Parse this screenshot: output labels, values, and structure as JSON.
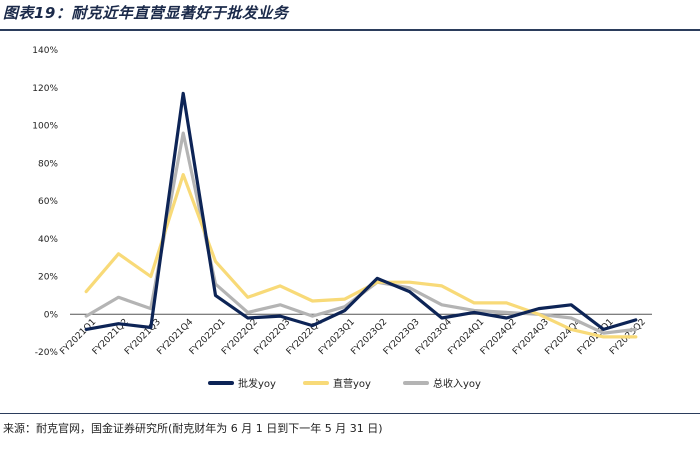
{
  "title": "图表19：耐克近年直营显著好于批发业务",
  "source": "来源：耐克官网，国金证券研究所(耐克财年为 6 月 1 日到下一年 5 月 31 日)",
  "colors": {
    "wholesale": "#0d2456",
    "direct": "#f8da78",
    "total": "#b4b4b4"
  },
  "chart_data": {
    "type": "line",
    "title": "",
    "xlabel": "",
    "ylabel": "",
    "ylim": [
      -20,
      140
    ],
    "yticks": [
      -20,
      0,
      20,
      40,
      60,
      80,
      100,
      120,
      140
    ],
    "ytick_labels": [
      "-20%",
      "0%",
      "20%",
      "40%",
      "60%",
      "80%",
      "100%",
      "120%",
      "140%"
    ],
    "grid": false,
    "legend_position": "bottom",
    "categories": [
      "FY2021Q1",
      "FY2021Q2",
      "FY2021Q3",
      "FY2021Q4",
      "FY2022Q1",
      "FY2022Q2",
      "FY2022Q3",
      "FY2022Q4",
      "FY2023Q1",
      "FY2023Q2",
      "FY2023Q3",
      "FY2023Q4",
      "FY2024Q1",
      "FY2024Q2",
      "FY2024Q3",
      "FY2024Q4",
      "FY2025Q1",
      "FY2025Q2"
    ],
    "x_tick_labels": [
      "FY2021Q1",
      "FY2021Q2",
      "FY2021Q3",
      "FY2021Q4",
      "FY2022Q1",
      "FY2022Q2",
      "FY2022Q3",
      "FY2022Q4",
      "FY2023Q1",
      "FY2023Q2",
      "FY2023Q3",
      "FY2023Q4",
      "FY2024Q1",
      "FY2024Q2",
      "FY2024Q3",
      "FY2024Q4",
      "FY2025Q1",
      "FY2025Q2"
    ],
    "series": [
      {
        "name": "批发yoy",
        "color_key": "wholesale",
        "values": [
          -8,
          -5,
          -7,
          117,
          10,
          -2,
          -1,
          -6,
          2,
          19,
          12,
          -2,
          1,
          -2,
          3,
          5,
          -8,
          -3
        ]
      },
      {
        "name": "直营yoy",
        "color_key": "direct",
        "values": [
          12,
          32,
          20,
          74,
          28,
          9,
          15,
          7,
          8,
          17,
          17,
          15,
          6,
          6,
          0,
          -8,
          -12,
          -12
        ]
      },
      {
        "name": "总收入yoy",
        "color_key": "total",
        "values": [
          -1,
          9,
          3,
          96,
          16,
          1,
          5,
          -1,
          4,
          17,
          14,
          5,
          2,
          1,
          0,
          -2,
          -10,
          -8
        ]
      }
    ]
  }
}
